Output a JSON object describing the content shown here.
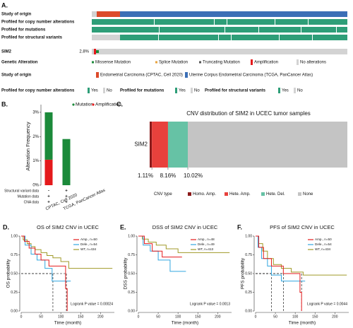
{
  "chart_data": [
    {
      "type": "oncoprint",
      "panel": "A.",
      "tracks": [
        "Study of origin",
        "Profiled for copy number alterations",
        "Profiled for mutations",
        "Profiled for structural variants"
      ],
      "gene": "SIM2",
      "gene_frequency": "2.8%",
      "legend": [
        {
          "title": "Genetic Alteration",
          "items": [
            {
              "name": "Missense Mutation",
              "color": "#1b8a3a"
            },
            {
              "name": "Splice Mutation",
              "color": "#e8a33d"
            },
            {
              "name": "Truncating Mutation",
              "color": "#555555"
            },
            {
              "name": "Amplification",
              "color": "#e41a1c"
            },
            {
              "name": "No alterations",
              "color": "#d3d3d3"
            }
          ]
        },
        {
          "title": "Study of origin",
          "items": [
            {
              "name": "Endometrial Carcinoma (CPTAC, Cell 2020)",
              "color": "#dc4a2a"
            },
            {
              "name": "Uterine Corpus Endometrial Carcinoma (TCGA, PanCancer Atlas)",
              "color": "#3c6fb6"
            }
          ]
        },
        {
          "title": "Profiled for copy number alterations",
          "items": [
            {
              "name": "Yes",
              "color": "#2e9e78"
            },
            {
              "name": "No",
              "color": "#d3d3d3"
            }
          ]
        },
        {
          "title": "Profiled for mutations",
          "items": [
            {
              "name": "Yes",
              "color": "#2e9e78"
            },
            {
              "name": "No",
              "color": "#d3d3d3"
            }
          ]
        },
        {
          "title": "Profiled for structural variants",
          "items": [
            {
              "name": "Yes",
              "color": "#2e9e78"
            },
            {
              "name": "No",
              "color": "#d3d3d3"
            }
          ]
        }
      ]
    },
    {
      "type": "bar",
      "panel": "B.",
      "y_label": "Alteration Frequency",
      "categories": [
        "CPTAC, Cell 2020",
        "TCGA, PanCancer Atlas"
      ],
      "series": [
        {
          "name": "Mutation",
          "color": "#1b8a3a",
          "values": [
            1.95,
            1.9
          ]
        },
        {
          "name": "Amplification",
          "color": "#e41a1c",
          "values": [
            1.05,
            0
          ]
        }
      ],
      "ylim": [
        0,
        3.2
      ],
      "yticks": [
        {
          "value": 0,
          "label": "0%"
        },
        {
          "value": 1,
          "label": "1%"
        },
        {
          "value": 2,
          "label": "2%"
        },
        {
          "value": 3,
          "label": "3%"
        }
      ],
      "profile_table": {
        "rows": [
          "Structural variant data",
          "Mutation data",
          "CNA data"
        ],
        "cells": [
          [
            "-",
            "+"
          ],
          [
            "+",
            "+"
          ],
          [
            "+",
            "+"
          ]
        ]
      }
    },
    {
      "type": "stacked-bar",
      "panel": "C.",
      "title": "CNV distribution of SIM2 in UCEC tumor samples",
      "category": "SIM2",
      "legend_title": "CNV type",
      "xlim": [
        0,
        100
      ],
      "series": [
        {
          "name": "Homo. Amp.",
          "color": "#8b1a1a",
          "values": [
            1.11
          ],
          "value_labels": [
            "1.11%"
          ]
        },
        {
          "name": "Hete. Amp.",
          "color": "#e8413c",
          "values": [
            8.16
          ],
          "value_labels": [
            "8.16%"
          ]
        },
        {
          "name": "Hete. Del.",
          "color": "#66c2a5",
          "values": [
            10.02
          ],
          "value_labels": [
            "10.02%"
          ]
        },
        {
          "name": "None",
          "color": "#c4c4c4",
          "values": [
            80.71
          ]
        }
      ]
    },
    {
      "type": "line",
      "panel": "D.",
      "title": "OS of SIM2 CNV in UCEC",
      "x_label": "Time (month)",
      "y_label": "OS probability",
      "annotation": "Logrank P value = 0.00024",
      "xlim": [
        0,
        235
      ],
      "ylim": [
        0,
        1
      ],
      "xticks": [
        0,
        50,
        100,
        150,
        200
      ],
      "yticks": [
        {
          "value": 0,
          "label": "0.00"
        },
        {
          "value": 0.25,
          "label": "0.25"
        },
        {
          "value": 0.5,
          "label": "0.50"
        },
        {
          "value": 0.75,
          "label": "0.75"
        },
        {
          "value": 1,
          "label": "1.00"
        }
      ],
      "median_survival": {
        "y": 0.5,
        "x": [
          80,
          114
        ]
      },
      "series": [
        {
          "name": "Amp., n=50",
          "color": "#e41a1c",
          "x": [
            0,
            8,
            8,
            20,
            20,
            35,
            35,
            50,
            50,
            70,
            70,
            112,
            112,
            116,
            116
          ],
          "values": [
            1,
            1,
            0.93,
            0.93,
            0.84,
            0.84,
            0.76,
            0.76,
            0.68,
            0.68,
            0.6,
            0.6,
            0.3,
            0.3,
            0
          ]
        },
        {
          "name": "Dele., n=54",
          "color": "#33a6e0",
          "x": [
            0,
            10,
            10,
            25,
            25,
            40,
            40,
            60,
            60,
            78,
            78,
            125
          ],
          "values": [
            1,
            1,
            0.88,
            0.88,
            0.76,
            0.76,
            0.68,
            0.68,
            0.57,
            0.57,
            0.4,
            0.4
          ]
        },
        {
          "name": "WT, n=434",
          "color": "#a09a28",
          "x": [
            0,
            5,
            5,
            15,
            15,
            25,
            25,
            35,
            35,
            50,
            50,
            65,
            65,
            80,
            80,
            100,
            100,
            120,
            120,
            230
          ],
          "values": [
            1,
            1,
            0.95,
            0.95,
            0.9,
            0.9,
            0.86,
            0.86,
            0.82,
            0.82,
            0.78,
            0.78,
            0.74,
            0.74,
            0.71,
            0.71,
            0.66,
            0.66,
            0.57,
            0.57
          ]
        }
      ]
    },
    {
      "type": "line",
      "panel": "E.",
      "title": "DSS of SIM2 CNV in UCEC",
      "x_label": "Time (month)",
      "y_label": "DSS probability",
      "annotation": "Logrank P value = 0.0013",
      "xlim": [
        0,
        235
      ],
      "ylim": [
        0,
        1
      ],
      "xticks": [
        0,
        50,
        100,
        150,
        200
      ],
      "yticks": [
        {
          "value": 0,
          "label": "0.00"
        },
        {
          "value": 0.25,
          "label": "0.25"
        },
        {
          "value": 0.5,
          "label": "0.50"
        },
        {
          "value": 0.75,
          "label": "0.75"
        },
        {
          "value": 1,
          "label": "1.00"
        }
      ],
      "series": [
        {
          "name": "Amp., n=48",
          "color": "#e41a1c",
          "x": [
            0,
            15,
            15,
            35,
            35,
            60,
            60,
            110
          ],
          "values": [
            1,
            1,
            0.9,
            0.9,
            0.8,
            0.8,
            0.72,
            0.72
          ]
        },
        {
          "name": "Dele., n=49",
          "color": "#33a6e0",
          "x": [
            0,
            12,
            12,
            30,
            30,
            50,
            50,
            80,
            80,
            120
          ],
          "values": [
            1,
            1,
            0.88,
            0.88,
            0.8,
            0.8,
            0.68,
            0.68,
            0.53,
            0.53
          ]
        },
        {
          "name": "WT, n=413",
          "color": "#a09a28",
          "x": [
            0,
            10,
            10,
            25,
            25,
            45,
            45,
            70,
            70,
            100,
            100,
            230
          ],
          "values": [
            1,
            1,
            0.96,
            0.96,
            0.92,
            0.92,
            0.88,
            0.88,
            0.83,
            0.83,
            0.78,
            0.78
          ]
        }
      ]
    },
    {
      "type": "line",
      "panel": "F.",
      "title": "PFS of SIM2 CNV in UCEC",
      "x_label": "Time (month)",
      "y_label": "PFS probability",
      "annotation": "Logrank P value = 0.0044",
      "xlim": [
        0,
        235
      ],
      "ylim": [
        0,
        1
      ],
      "xticks": [
        0,
        50,
        100,
        150,
        200
      ],
      "yticks": [
        {
          "value": 0,
          "label": "0.00"
        },
        {
          "value": 0.25,
          "label": "0.25"
        },
        {
          "value": 0.5,
          "label": "0.50"
        },
        {
          "value": 0.75,
          "label": "0.75"
        },
        {
          "value": 1,
          "label": "1.00"
        }
      ],
      "median_survival": {
        "y": 0.5,
        "x": [
          40,
          70,
          116
        ]
      },
      "series": [
        {
          "name": "Amp., n=50",
          "color": "#e41a1c",
          "x": [
            0,
            8,
            8,
            20,
            20,
            40,
            40,
            70,
            70,
            112,
            112,
            116,
            116
          ],
          "values": [
            1,
            1,
            0.85,
            0.85,
            0.7,
            0.7,
            0.6,
            0.6,
            0.5,
            0.5,
            0.25,
            0.25,
            0
          ]
        },
        {
          "name": "Dele., n=54",
          "color": "#33a6e0",
          "x": [
            0,
            6,
            6,
            15,
            15,
            30,
            30,
            40,
            40,
            65,
            65,
            125
          ],
          "values": [
            1,
            1,
            0.85,
            0.85,
            0.7,
            0.7,
            0.6,
            0.6,
            0.48,
            0.48,
            0.4,
            0.4
          ]
        },
        {
          "name": "WT, n=434",
          "color": "#a09a28",
          "x": [
            0,
            8,
            8,
            18,
            18,
            30,
            30,
            45,
            45,
            65,
            65,
            90,
            90,
            120,
            120,
            230
          ],
          "values": [
            1,
            1,
            0.9,
            0.9,
            0.8,
            0.8,
            0.7,
            0.7,
            0.62,
            0.62,
            0.57,
            0.57,
            0.52,
            0.52,
            0.48,
            0.48
          ]
        }
      ]
    }
  ]
}
